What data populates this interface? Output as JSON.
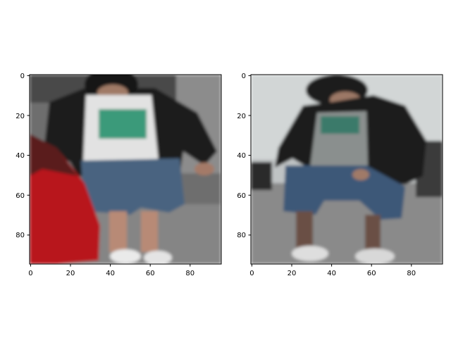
{
  "figure": {
    "panels": [
      {
        "name": "left-image",
        "xticks": [
          "0",
          "20",
          "40",
          "60",
          "80"
        ],
        "yticks": [
          "0",
          "20",
          "40",
          "60",
          "80"
        ]
      },
      {
        "name": "right-image",
        "xticks": [
          "0",
          "20",
          "40",
          "60",
          "80"
        ],
        "yticks": [
          "0",
          "20",
          "40",
          "60",
          "80"
        ]
      }
    ]
  },
  "colors": {
    "frame": "#000000",
    "background": "#ffffff"
  }
}
